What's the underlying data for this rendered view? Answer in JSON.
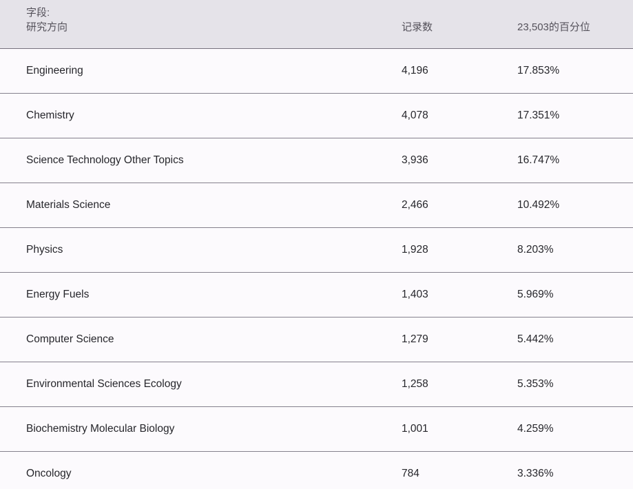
{
  "table": {
    "header": {
      "field_prefix": "字段:",
      "field_name": "研究方向",
      "records": "记录数",
      "percentile": "23,503的百分位"
    },
    "total_records": "23,503",
    "rows": [
      {
        "field": "Engineering",
        "records": "4,196",
        "percent": "17.853%"
      },
      {
        "field": "Chemistry",
        "records": "4,078",
        "percent": "17.351%"
      },
      {
        "field": "Science Technology Other Topics",
        "records": "3,936",
        "percent": "16.747%"
      },
      {
        "field": "Materials Science",
        "records": "2,466",
        "percent": "10.492%"
      },
      {
        "field": "Physics",
        "records": "1,928",
        "percent": "8.203%"
      },
      {
        "field": "Energy Fuels",
        "records": "1,403",
        "percent": "5.969%"
      },
      {
        "field": "Computer Science",
        "records": "1,279",
        "percent": "5.442%"
      },
      {
        "field": "Environmental Sciences Ecology",
        "records": "1,258",
        "percent": "5.353%"
      },
      {
        "field": "Biochemistry Molecular Biology",
        "records": "1,001",
        "percent": "4.259%"
      },
      {
        "field": "Oncology",
        "records": "784",
        "percent": "3.336%"
      }
    ],
    "colors": {
      "header_bg": "#e5e3e9",
      "row_bg": "#fcfafd",
      "separator": "#84808c",
      "header_text": "#55525b",
      "body_text": "#26262b"
    }
  }
}
